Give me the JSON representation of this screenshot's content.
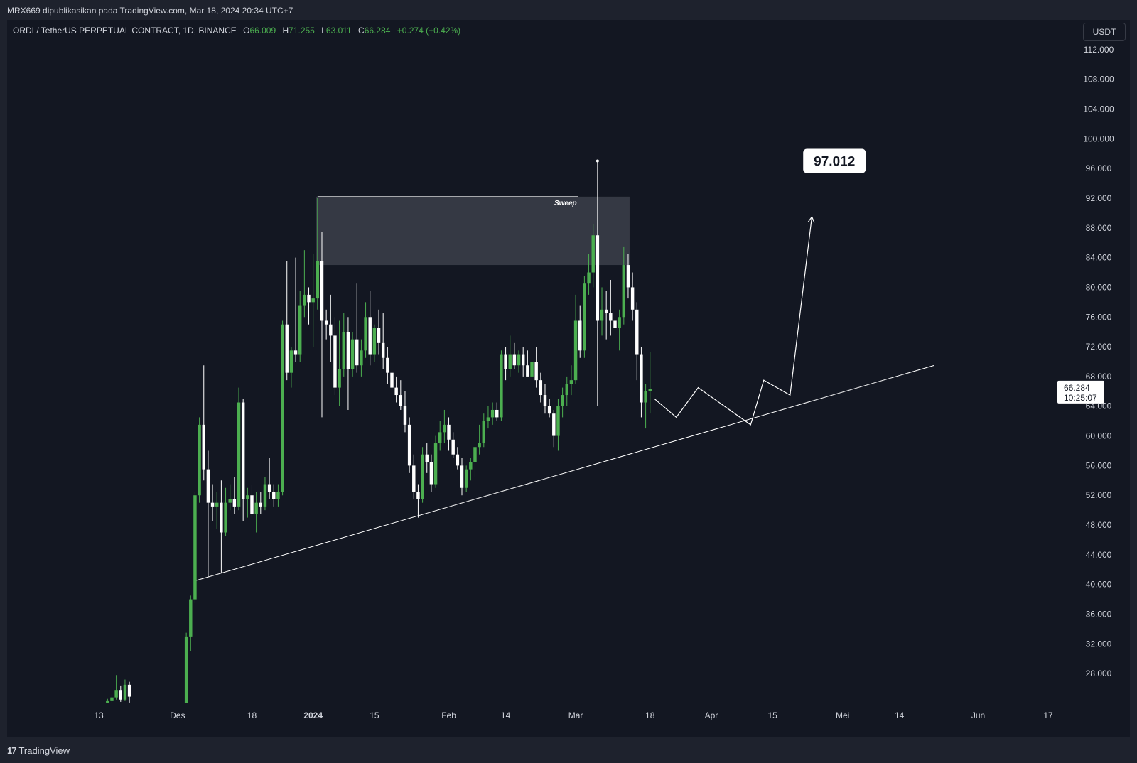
{
  "header": {
    "publish_line": "MRX669 dipublikasikan pada TradingView.com, Mar 18, 2024 20:34 UTC+7"
  },
  "legend": {
    "symbol": "ORDI / TetherUS PERPETUAL CONTRACT, 1D, BINANCE",
    "o_label": "O",
    "o": "66.009",
    "h_label": "H",
    "h": "71.255",
    "l_label": "L",
    "l": "63.011",
    "c_label": "C",
    "c": "66.284",
    "change": "+0.274 (+0.42%)"
  },
  "currency_button": "USDT",
  "footer": {
    "logo_mark": "17",
    "brand": "TradingView"
  },
  "colors": {
    "bg": "#131722",
    "frame": "#1e222d",
    "up": "#4caf50",
    "down": "#ffffff",
    "text": "#d1d4dc",
    "zone": "#3a3d48"
  },
  "chart_data": {
    "type": "candlestick",
    "ylim": [
      24.0,
      116.0
    ],
    "y_ticks": [
      "112.000",
      "108.000",
      "104.000",
      "100.000",
      "96.000",
      "92.000",
      "88.000",
      "84.000",
      "80.000",
      "76.000",
      "72.000",
      "68.000",
      "64.000",
      "60.000",
      "56.000",
      "52.000",
      "48.000",
      "44.000",
      "40.000",
      "36.000",
      "32.000",
      "28.000"
    ],
    "x_ticks": [
      {
        "date": "2023-11-13",
        "label": "13",
        "bold": false
      },
      {
        "date": "2023-12-01",
        "label": "Des",
        "bold": false
      },
      {
        "date": "2023-12-18",
        "label": "18",
        "bold": false
      },
      {
        "date": "2024-01-01",
        "label": "2024",
        "bold": true
      },
      {
        "date": "2024-01-15",
        "label": "15",
        "bold": false
      },
      {
        "date": "2024-02-01",
        "label": "Feb",
        "bold": false
      },
      {
        "date": "2024-02-14",
        "label": "14",
        "bold": false
      },
      {
        "date": "2024-03-01",
        "label": "Mar",
        "bold": false
      },
      {
        "date": "2024-03-18",
        "label": "18",
        "bold": false
      },
      {
        "date": "2024-04-01",
        "label": "Apr",
        "bold": false
      },
      {
        "date": "2024-04-15",
        "label": "15",
        "bold": false
      },
      {
        "date": "2024-05-01",
        "label": "Mei",
        "bold": false
      },
      {
        "date": "2024-05-14",
        "label": "14",
        "bold": false
      },
      {
        "date": "2024-06-01",
        "label": "Jun",
        "bold": false
      },
      {
        "date": "2024-06-17",
        "label": "17",
        "bold": false
      }
    ],
    "candles": [
      {
        "d": "2023-11-15",
        "o": 24.0,
        "h": 24.6,
        "l": 23.8,
        "c": 24.3
      },
      {
        "d": "2023-11-16",
        "o": 24.3,
        "h": 25.2,
        "l": 24.0,
        "c": 24.8
      },
      {
        "d": "2023-11-17",
        "o": 24.8,
        "h": 27.8,
        "l": 24.5,
        "c": 25.8
      },
      {
        "d": "2023-11-18",
        "o": 25.8,
        "h": 26.4,
        "l": 24.2,
        "c": 24.5
      },
      {
        "d": "2023-11-19",
        "o": 24.5,
        "h": 27.2,
        "l": 24.3,
        "c": 26.5
      },
      {
        "d": "2023-11-20",
        "o": 26.5,
        "h": 26.9,
        "l": 24.1,
        "c": 24.9
      },
      {
        "d": "2023-12-03",
        "o": 24.0,
        "h": 33.5,
        "l": 23.8,
        "c": 33.0
      },
      {
        "d": "2023-12-04",
        "o": 33.0,
        "h": 38.5,
        "l": 31.0,
        "c": 38.0
      },
      {
        "d": "2023-12-05",
        "o": 38.0,
        "h": 52.5,
        "l": 37.5,
        "c": 52.0
      },
      {
        "d": "2023-12-06",
        "o": 52.0,
        "h": 62.5,
        "l": 51.0,
        "c": 61.5
      },
      {
        "d": "2023-12-07",
        "o": 61.5,
        "h": 69.5,
        "l": 54.0,
        "c": 55.5
      },
      {
        "d": "2023-12-08",
        "o": 55.5,
        "h": 58.0,
        "l": 41.0,
        "c": 51.0
      },
      {
        "d": "2023-12-09",
        "o": 51.0,
        "h": 53.5,
        "l": 48.5,
        "c": 50.5
      },
      {
        "d": "2023-12-10",
        "o": 50.5,
        "h": 52.5,
        "l": 47.5,
        "c": 51.0
      },
      {
        "d": "2023-12-11",
        "o": 51.0,
        "h": 54.0,
        "l": 41.5,
        "c": 47.0
      },
      {
        "d": "2023-12-12",
        "o": 47.0,
        "h": 53.0,
        "l": 46.5,
        "c": 51.0
      },
      {
        "d": "2023-12-13",
        "o": 51.0,
        "h": 53.5,
        "l": 50.0,
        "c": 51.5
      },
      {
        "d": "2023-12-14",
        "o": 51.5,
        "h": 54.5,
        "l": 49.5,
        "c": 50.5
      },
      {
        "d": "2023-12-15",
        "o": 50.5,
        "h": 66.5,
        "l": 50.0,
        "c": 64.5
      },
      {
        "d": "2023-12-16",
        "o": 64.5,
        "h": 65.0,
        "l": 48.5,
        "c": 51.5
      },
      {
        "d": "2023-12-17",
        "o": 51.5,
        "h": 53.0,
        "l": 49.0,
        "c": 52.0
      },
      {
        "d": "2023-12-18",
        "o": 52.0,
        "h": 53.5,
        "l": 49.0,
        "c": 49.5
      },
      {
        "d": "2023-12-19",
        "o": 49.5,
        "h": 52.5,
        "l": 47.0,
        "c": 51.0
      },
      {
        "d": "2023-12-20",
        "o": 51.0,
        "h": 52.5,
        "l": 49.5,
        "c": 50.5
      },
      {
        "d": "2023-12-21",
        "o": 50.5,
        "h": 54.5,
        "l": 50.0,
        "c": 53.5
      },
      {
        "d": "2023-12-22",
        "o": 53.5,
        "h": 57.0,
        "l": 51.5,
        "c": 52.5
      },
      {
        "d": "2023-12-23",
        "o": 52.5,
        "h": 53.5,
        "l": 50.5,
        "c": 51.5
      },
      {
        "d": "2023-12-24",
        "o": 51.5,
        "h": 53.5,
        "l": 50.5,
        "c": 52.5
      },
      {
        "d": "2023-12-25",
        "o": 52.5,
        "h": 75.5,
        "l": 52.0,
        "c": 75.0
      },
      {
        "d": "2023-12-26",
        "o": 75.0,
        "h": 83.5,
        "l": 67.5,
        "c": 68.5
      },
      {
        "d": "2023-12-27",
        "o": 68.5,
        "h": 72.0,
        "l": 66.5,
        "c": 71.5
      },
      {
        "d": "2023-12-28",
        "o": 71.5,
        "h": 84.0,
        "l": 70.0,
        "c": 71.0
      },
      {
        "d": "2023-12-29",
        "o": 71.0,
        "h": 79.5,
        "l": 70.0,
        "c": 77.5
      },
      {
        "d": "2023-12-30",
        "o": 77.5,
        "h": 85.0,
        "l": 76.0,
        "c": 79.0
      },
      {
        "d": "2023-12-31",
        "o": 79.0,
        "h": 80.0,
        "l": 75.0,
        "c": 78.0
      },
      {
        "d": "2024-01-01",
        "o": 78.0,
        "h": 84.5,
        "l": 72.0,
        "c": 78.5
      },
      {
        "d": "2024-01-02",
        "o": 78.5,
        "h": 92.0,
        "l": 77.0,
        "c": 83.5
      },
      {
        "d": "2024-01-03",
        "o": 83.5,
        "h": 87.5,
        "l": 62.5,
        "c": 75.5
      },
      {
        "d": "2024-01-04",
        "o": 75.5,
        "h": 77.0,
        "l": 73.0,
        "c": 75.0
      },
      {
        "d": "2024-01-05",
        "o": 75.0,
        "h": 79.0,
        "l": 70.0,
        "c": 73.5
      },
      {
        "d": "2024-01-06",
        "o": 73.5,
        "h": 76.0,
        "l": 65.5,
        "c": 66.5
      },
      {
        "d": "2024-01-07",
        "o": 66.5,
        "h": 75.5,
        "l": 64.0,
        "c": 69.0
      },
      {
        "d": "2024-01-08",
        "o": 69.0,
        "h": 76.5,
        "l": 68.0,
        "c": 74.0
      },
      {
        "d": "2024-01-09",
        "o": 74.0,
        "h": 76.0,
        "l": 63.5,
        "c": 69.0
      },
      {
        "d": "2024-01-10",
        "o": 69.0,
        "h": 74.0,
        "l": 68.0,
        "c": 73.0
      },
      {
        "d": "2024-01-11",
        "o": 73.0,
        "h": 80.5,
        "l": 68.5,
        "c": 69.5
      },
      {
        "d": "2024-01-12",
        "o": 69.5,
        "h": 73.0,
        "l": 68.0,
        "c": 71.5
      },
      {
        "d": "2024-01-13",
        "o": 71.5,
        "h": 78.0,
        "l": 70.5,
        "c": 76.0
      },
      {
        "d": "2024-01-14",
        "o": 76.0,
        "h": 79.5,
        "l": 69.5,
        "c": 71.0
      },
      {
        "d": "2024-01-15",
        "o": 71.0,
        "h": 75.0,
        "l": 70.0,
        "c": 74.5
      },
      {
        "d": "2024-01-16",
        "o": 74.5,
        "h": 77.0,
        "l": 71.0,
        "c": 72.5
      },
      {
        "d": "2024-01-17",
        "o": 72.5,
        "h": 76.5,
        "l": 69.0,
        "c": 70.5
      },
      {
        "d": "2024-01-18",
        "o": 70.5,
        "h": 72.0,
        "l": 67.0,
        "c": 68.5
      },
      {
        "d": "2024-01-19",
        "o": 68.5,
        "h": 70.5,
        "l": 65.5,
        "c": 66.5
      },
      {
        "d": "2024-01-20",
        "o": 66.5,
        "h": 68.0,
        "l": 64.5,
        "c": 65.5
      },
      {
        "d": "2024-01-21",
        "o": 65.5,
        "h": 67.5,
        "l": 63.5,
        "c": 64.0
      },
      {
        "d": "2024-01-22",
        "o": 64.0,
        "h": 66.0,
        "l": 60.5,
        "c": 61.5
      },
      {
        "d": "2024-01-23",
        "o": 61.5,
        "h": 62.5,
        "l": 55.0,
        "c": 56.0
      },
      {
        "d": "2024-01-24",
        "o": 56.0,
        "h": 57.5,
        "l": 51.5,
        "c": 52.5
      },
      {
        "d": "2024-01-25",
        "o": 52.5,
        "h": 53.5,
        "l": 49.0,
        "c": 51.5
      },
      {
        "d": "2024-01-26",
        "o": 51.5,
        "h": 58.5,
        "l": 51.0,
        "c": 57.5
      },
      {
        "d": "2024-01-27",
        "o": 57.5,
        "h": 59.0,
        "l": 55.0,
        "c": 56.5
      },
      {
        "d": "2024-01-28",
        "o": 56.5,
        "h": 57.5,
        "l": 52.5,
        "c": 53.5
      },
      {
        "d": "2024-01-29",
        "o": 53.5,
        "h": 60.0,
        "l": 53.0,
        "c": 59.0
      },
      {
        "d": "2024-01-30",
        "o": 59.0,
        "h": 62.0,
        "l": 58.0,
        "c": 60.5
      },
      {
        "d": "2024-01-31",
        "o": 60.5,
        "h": 63.5,
        "l": 59.0,
        "c": 61.5
      },
      {
        "d": "2024-02-01",
        "o": 61.5,
        "h": 62.5,
        "l": 58.0,
        "c": 59.5
      },
      {
        "d": "2024-02-02",
        "o": 59.5,
        "h": 60.5,
        "l": 57.0,
        "c": 57.5
      },
      {
        "d": "2024-02-03",
        "o": 57.5,
        "h": 58.5,
        "l": 55.5,
        "c": 56.0
      },
      {
        "d": "2024-02-04",
        "o": 56.0,
        "h": 57.0,
        "l": 52.0,
        "c": 53.0
      },
      {
        "d": "2024-02-05",
        "o": 53.0,
        "h": 56.0,
        "l": 52.5,
        "c": 55.5
      },
      {
        "d": "2024-02-06",
        "o": 55.5,
        "h": 57.0,
        "l": 54.0,
        "c": 56.5
      },
      {
        "d": "2024-02-07",
        "o": 56.5,
        "h": 58.0,
        "l": 54.5,
        "c": 58.5
      },
      {
        "d": "2024-02-08",
        "o": 58.5,
        "h": 61.5,
        "l": 57.5,
        "c": 59.0
      },
      {
        "d": "2024-02-09",
        "o": 59.0,
        "h": 63.0,
        "l": 58.5,
        "c": 62.0
      },
      {
        "d": "2024-02-10",
        "o": 62.0,
        "h": 64.0,
        "l": 61.0,
        "c": 62.5
      },
      {
        "d": "2024-02-11",
        "o": 62.5,
        "h": 64.5,
        "l": 61.5,
        "c": 63.5
      },
      {
        "d": "2024-02-12",
        "o": 63.5,
        "h": 64.5,
        "l": 62.0,
        "c": 62.5
      },
      {
        "d": "2024-02-13",
        "o": 62.5,
        "h": 71.5,
        "l": 62.0,
        "c": 71.0
      },
      {
        "d": "2024-02-14",
        "o": 71.0,
        "h": 72.0,
        "l": 67.5,
        "c": 69.0
      },
      {
        "d": "2024-02-15",
        "o": 69.0,
        "h": 73.5,
        "l": 68.0,
        "c": 71.0
      },
      {
        "d": "2024-02-16",
        "o": 71.0,
        "h": 72.5,
        "l": 69.0,
        "c": 69.5
      },
      {
        "d": "2024-02-17",
        "o": 69.5,
        "h": 71.5,
        "l": 68.5,
        "c": 71.0
      },
      {
        "d": "2024-02-18",
        "o": 71.0,
        "h": 72.0,
        "l": 68.0,
        "c": 69.5
      },
      {
        "d": "2024-02-19",
        "o": 69.5,
        "h": 71.5,
        "l": 68.5,
        "c": 68.0
      },
      {
        "d": "2024-02-20",
        "o": 68.0,
        "h": 73.0,
        "l": 68.0,
        "c": 70.0
      },
      {
        "d": "2024-02-21",
        "o": 70.0,
        "h": 72.0,
        "l": 66.5,
        "c": 67.5
      },
      {
        "d": "2024-02-22",
        "o": 67.5,
        "h": 68.5,
        "l": 64.5,
        "c": 65.5
      },
      {
        "d": "2024-02-23",
        "o": 65.5,
        "h": 67.0,
        "l": 63.0,
        "c": 64.0
      },
      {
        "d": "2024-02-24",
        "o": 64.0,
        "h": 65.0,
        "l": 62.5,
        "c": 63.0
      },
      {
        "d": "2024-02-25",
        "o": 63.0,
        "h": 63.5,
        "l": 58.5,
        "c": 60.0
      },
      {
        "d": "2024-02-26",
        "o": 60.0,
        "h": 65.0,
        "l": 58.0,
        "c": 64.0
      },
      {
        "d": "2024-02-27",
        "o": 64.0,
        "h": 66.5,
        "l": 62.5,
        "c": 65.5
      },
      {
        "d": "2024-02-28",
        "o": 65.5,
        "h": 68.0,
        "l": 64.0,
        "c": 67.0
      },
      {
        "d": "2024-02-29",
        "o": 67.0,
        "h": 69.5,
        "l": 65.5,
        "c": 67.5
      },
      {
        "d": "2024-03-01",
        "o": 67.5,
        "h": 79.0,
        "l": 67.0,
        "c": 75.5
      },
      {
        "d": "2024-03-02",
        "o": 75.5,
        "h": 77.5,
        "l": 70.5,
        "c": 71.5
      },
      {
        "d": "2024-03-03",
        "o": 71.5,
        "h": 81.5,
        "l": 70.5,
        "c": 80.5
      },
      {
        "d": "2024-03-04",
        "o": 80.5,
        "h": 84.5,
        "l": 79.0,
        "c": 82.0
      },
      {
        "d": "2024-03-05",
        "o": 82.0,
        "h": 88.5,
        "l": 80.0,
        "c": 87.0
      },
      {
        "d": "2024-03-06",
        "o": 87.0,
        "h": 97.012,
        "l": 64.0,
        "c": 75.5
      },
      {
        "d": "2024-03-07",
        "o": 75.5,
        "h": 80.0,
        "l": 73.5,
        "c": 77.0
      },
      {
        "d": "2024-03-08",
        "o": 77.0,
        "h": 79.5,
        "l": 73.0,
        "c": 76.5
      },
      {
        "d": "2024-03-09",
        "o": 76.5,
        "h": 81.0,
        "l": 73.5,
        "c": 75.5
      },
      {
        "d": "2024-03-10",
        "o": 75.5,
        "h": 79.5,
        "l": 72.0,
        "c": 74.5
      },
      {
        "d": "2024-03-11",
        "o": 74.5,
        "h": 77.0,
        "l": 71.5,
        "c": 76.0
      },
      {
        "d": "2024-03-12",
        "o": 76.0,
        "h": 85.5,
        "l": 75.0,
        "c": 83.0
      },
      {
        "d": "2024-03-13",
        "o": 83.0,
        "h": 84.5,
        "l": 78.5,
        "c": 80.0
      },
      {
        "d": "2024-03-14",
        "o": 80.0,
        "h": 82.0,
        "l": 75.5,
        "c": 77.0
      },
      {
        "d": "2024-03-15",
        "o": 77.0,
        "h": 78.0,
        "l": 67.5,
        "c": 71.0
      },
      {
        "d": "2024-03-16",
        "o": 71.0,
        "h": 72.0,
        "l": 62.5,
        "c": 64.5
      },
      {
        "d": "2024-03-17",
        "o": 64.5,
        "h": 67.0,
        "l": 61.0,
        "c": 66.0
      },
      {
        "d": "2024-03-18",
        "o": 66.009,
        "h": 71.255,
        "l": 63.011,
        "c": 66.284
      }
    ],
    "zone": {
      "from": "2024-01-02",
      "to": "2024-03-13",
      "low": 83.0,
      "high": 92.2,
      "label": "Sweep"
    },
    "high_marker": {
      "from": "2024-03-06",
      "to": "2024-04-22",
      "value": 97.012,
      "label": "97.012"
    },
    "trendline": {
      "from": {
        "d": "2023-12-05",
        "v": 40.5
      },
      "to": {
        "d": "2024-05-22",
        "v": 69.5
      }
    },
    "projection": [
      {
        "d": "2024-03-19",
        "v": 65.0
      },
      {
        "d": "2024-03-24",
        "v": 62.5
      },
      {
        "d": "2024-03-29",
        "v": 66.5
      },
      {
        "d": "2024-04-10",
        "v": 61.5
      },
      {
        "d": "2024-04-13",
        "v": 67.5
      },
      {
        "d": "2024-04-19",
        "v": 65.5
      },
      {
        "d": "2024-04-24",
        "v": 89.5
      }
    ],
    "price_label": {
      "value": "66.284",
      "countdown": "10:25:07"
    }
  }
}
